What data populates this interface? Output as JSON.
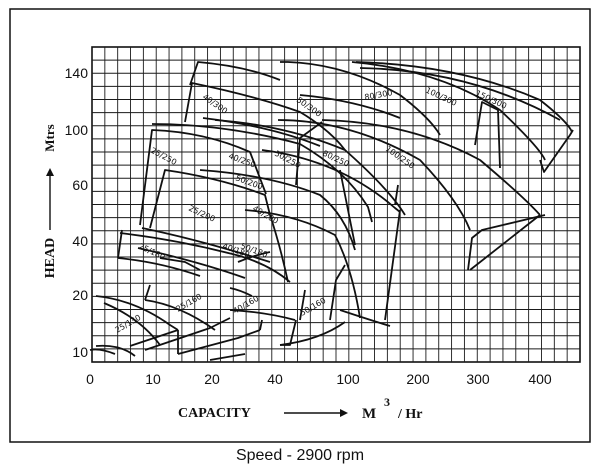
{
  "chart_data": {
    "type": "line",
    "title": "",
    "caption": "Speed - 2900 rpm",
    "xlabel": "CAPACITY",
    "xunit": "M",
    "xunit_exp": "3",
    "xunit_tail": "/ Hr",
    "ylabel": "HEAD",
    "yunit": "Mtrs",
    "x_ticks": [
      "0",
      "10",
      "20",
      "40",
      "60",
      "100",
      "200",
      "300",
      "400"
    ],
    "y_ticks": [
      "140",
      "100",
      "60",
      "40",
      "20",
      "10"
    ],
    "grid": true,
    "series": [
      {
        "name": "25/130"
      },
      {
        "name": "25/160"
      },
      {
        "name": "25/180"
      },
      {
        "name": "25/200"
      },
      {
        "name": "25/250"
      },
      {
        "name": "40/160"
      },
      {
        "name": "40/180"
      },
      {
        "name": "40/200"
      },
      {
        "name": "40/250"
      },
      {
        "name": "40/300"
      },
      {
        "name": "50/160"
      },
      {
        "name": "50/180"
      },
      {
        "name": "50/200"
      },
      {
        "name": "50/250"
      },
      {
        "name": "50/300"
      },
      {
        "name": "80/250"
      },
      {
        "name": "80/300"
      },
      {
        "name": "100/250"
      },
      {
        "name": "100/300"
      },
      {
        "name": "150/300"
      }
    ]
  },
  "colors": {
    "ink": "#111111",
    "grid": "#1a1a1a",
    "background": "#ffffff"
  }
}
